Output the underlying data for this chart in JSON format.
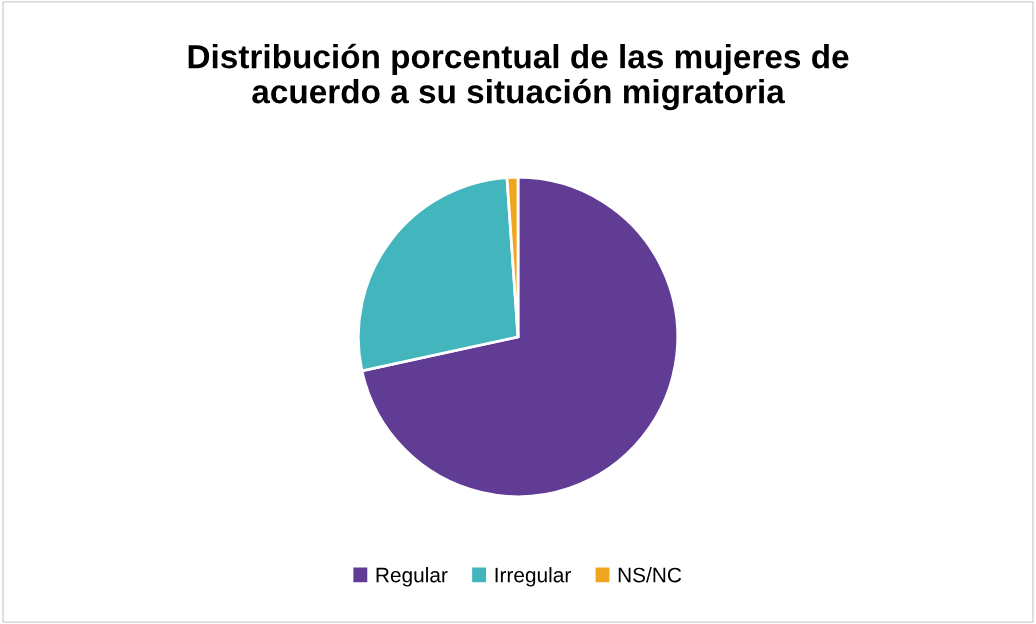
{
  "chart_data": {
    "type": "pie",
    "title": "Distribución porcentual de las mujeres de\nacuerdo a su situación migratoria",
    "categories": [
      "Regular",
      "Irregular",
      "NS/NC"
    ],
    "values": [
      71.6,
      27.3,
      1.1
    ],
    "colors": [
      "#603c95",
      "#43b5bd",
      "#f2a51e"
    ],
    "legend": "bottom"
  }
}
